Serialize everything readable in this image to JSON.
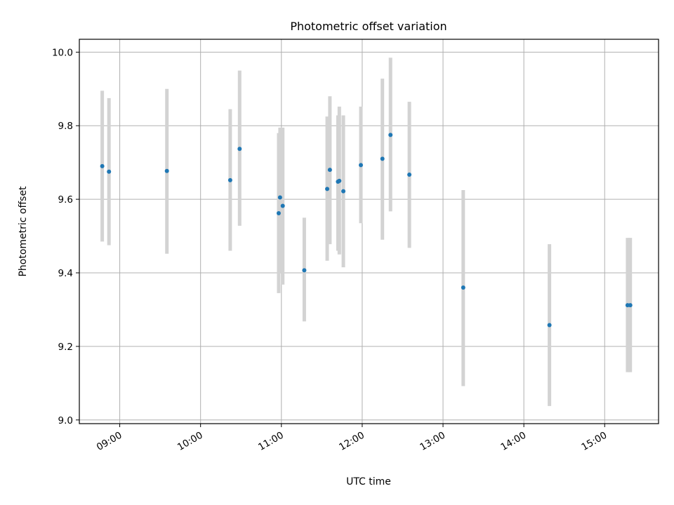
{
  "chart_data": {
    "type": "scatter",
    "title": "Photometric offset variation",
    "xlabel": "UTC time",
    "ylabel": "Photometric offset",
    "x_tick_labels": [
      "09:00",
      "10:00",
      "11:00",
      "12:00",
      "13:00",
      "14:00",
      "15:00"
    ],
    "y_tick_labels": [
      "9.0",
      "9.2",
      "9.4",
      "9.6",
      "9.8",
      "10.0"
    ],
    "xlim": [
      "08:30",
      "15:40"
    ],
    "ylim": [
      8.99,
      10.035
    ],
    "grid": true,
    "colors": {
      "points": "#1f77b4",
      "error_bars": "#d3d3d3",
      "grid": "#b0b0b0"
    },
    "series": [
      {
        "points": [
          {
            "x": "08:47",
            "y": 9.69,
            "y_low": 9.485,
            "y_high": 9.895
          },
          {
            "x": "08:52",
            "y": 9.675,
            "y_low": 9.475,
            "y_high": 9.875
          },
          {
            "x": "09:35",
            "y": 9.677,
            "y_low": 9.452,
            "y_high": 9.9
          },
          {
            "x": "10:22",
            "y": 9.652,
            "y_low": 9.46,
            "y_high": 9.845
          },
          {
            "x": "10:29",
            "y": 9.737,
            "y_low": 9.528,
            "y_high": 9.95
          },
          {
            "x": "10:58",
            "y": 9.562,
            "y_low": 9.345,
            "y_high": 9.78
          },
          {
            "x": "10:59",
            "y": 9.605,
            "y_low": 9.4,
            "y_high": 9.795
          },
          {
            "x": "11:01",
            "y": 9.582,
            "y_low": 9.368,
            "y_high": 9.795
          },
          {
            "x": "11:17",
            "y": 9.407,
            "y_low": 9.268,
            "y_high": 9.55
          },
          {
            "x": "11:34",
            "y": 9.628,
            "y_low": 9.433,
            "y_high": 9.825
          },
          {
            "x": "11:36",
            "y": 9.68,
            "y_low": 9.478,
            "y_high": 9.88
          },
          {
            "x": "11:42",
            "y": 9.648,
            "y_low": 9.46,
            "y_high": 9.828
          },
          {
            "x": "11:43",
            "y": 9.65,
            "y_low": 9.45,
            "y_high": 9.852
          },
          {
            "x": "11:46",
            "y": 9.622,
            "y_low": 9.415,
            "y_high": 9.828
          },
          {
            "x": "11:59",
            "y": 9.693,
            "y_low": 9.535,
            "y_high": 9.852
          },
          {
            "x": "12:15",
            "y": 9.71,
            "y_low": 9.49,
            "y_high": 9.928
          },
          {
            "x": "12:21",
            "y": 9.775,
            "y_low": 9.567,
            "y_high": 9.985
          },
          {
            "x": "12:35",
            "y": 9.667,
            "y_low": 9.468,
            "y_high": 9.865
          },
          {
            "x": "13:15",
            "y": 9.36,
            "y_low": 9.092,
            "y_high": 9.625
          },
          {
            "x": "14:19",
            "y": 9.258,
            "y_low": 9.038,
            "y_high": 9.478
          },
          {
            "x": "15:17",
            "y": 9.312,
            "y_low": 9.13,
            "y_high": 9.495
          },
          {
            "x": "15:19",
            "y": 9.312,
            "y_low": 9.13,
            "y_high": 9.495
          }
        ]
      }
    ]
  }
}
